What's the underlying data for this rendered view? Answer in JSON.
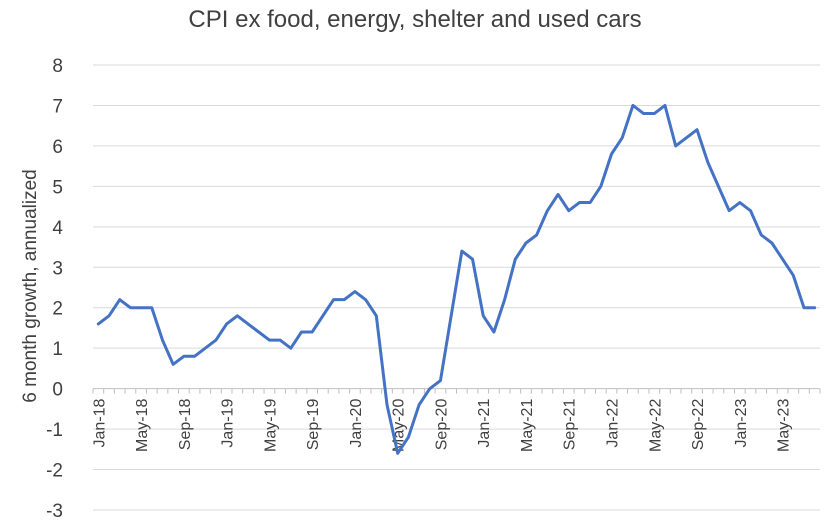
{
  "chart_data": {
    "type": "line",
    "title": "CPI ex food, energy, shelter and used cars",
    "xlabel": "",
    "ylabel": "6 month growth, annualized",
    "ylim": [
      -3,
      8
    ],
    "yticks": [
      -3,
      -2,
      -1,
      0,
      1,
      2,
      3,
      4,
      5,
      6,
      7,
      8
    ],
    "grid": true,
    "legend": "none",
    "x_tick_labels": [
      "Jan-18",
      "May-18",
      "Sep-18",
      "Jan-19",
      "May-19",
      "Sep-19",
      "Jan-20",
      "May-20",
      "Sep-20",
      "Jan-21",
      "May-21",
      "Sep-21",
      "Jan-22",
      "May-22",
      "Sep-22",
      "Jan-23",
      "May-23"
    ],
    "x_tick_step_months": 4,
    "start": "Jan-18",
    "color": "#4472c4",
    "series": [
      {
        "name": "CPI ex food, energy, shelter and used cars",
        "values": [
          1.6,
          1.8,
          2.2,
          2.0,
          2.0,
          2.0,
          1.2,
          0.6,
          0.8,
          0.8,
          1.0,
          1.2,
          1.6,
          1.8,
          1.6,
          1.4,
          1.2,
          1.2,
          1.0,
          1.4,
          1.4,
          1.8,
          2.2,
          2.2,
          2.4,
          2.2,
          1.8,
          -0.4,
          -1.6,
          -1.2,
          -0.4,
          0.0,
          0.2,
          1.8,
          3.4,
          3.2,
          1.8,
          1.4,
          2.2,
          3.2,
          3.6,
          3.8,
          4.4,
          4.8,
          4.4,
          4.6,
          4.6,
          5.0,
          5.8,
          6.2,
          7.0,
          6.8,
          6.8,
          7.0,
          6.0,
          6.2,
          6.4,
          5.6,
          5.0,
          4.4,
          4.6,
          4.4,
          3.8,
          3.6,
          3.2,
          2.8,
          2.0,
          2.0
        ]
      }
    ]
  }
}
